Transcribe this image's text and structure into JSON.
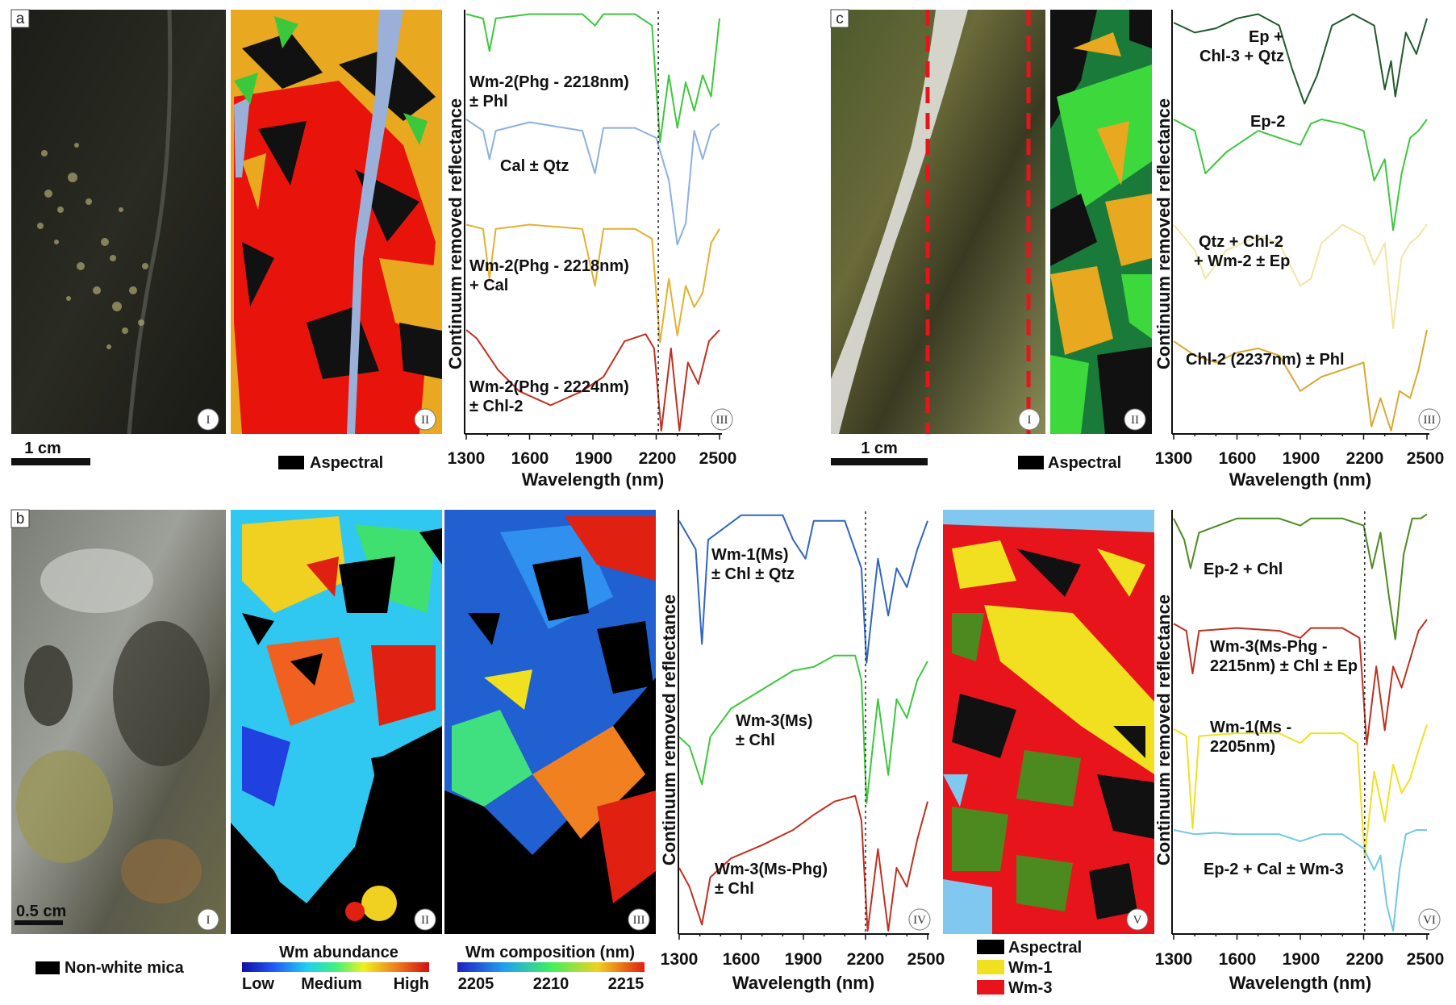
{
  "panels": {
    "a": {
      "letter": "a",
      "scale_label": "1 cm",
      "legend_aspectral": "Aspectral",
      "roman": [
        "I",
        "II",
        "III"
      ],
      "spectra_labels": [
        [
          "Wm-2(Phg - 2218nm)",
          "± Phl"
        ],
        [
          "Cal ± Qtz"
        ],
        [
          "Wm-2(Phg - 2218nm)",
          "+ Cal"
        ],
        [
          "Wm-2(Phg - 2224nm)",
          "± Chl-2"
        ]
      ]
    },
    "b": {
      "letter": "b",
      "scale_label": "0.5 cm",
      "legend_nonwhite": "Non-white mica",
      "roman": [
        "I",
        "II",
        "III",
        "IV",
        "V",
        "VI"
      ],
      "abundance_title": "Wm abundance",
      "abundance_labels": [
        "Low",
        "Medium",
        "High"
      ],
      "composition_title": "Wm composition (nm)",
      "composition_ticks": [
        "2205",
        "2210",
        "2215"
      ],
      "map_legend": [
        "Aspectral",
        "Wm-1",
        "Wm-3"
      ],
      "spectra_iv_labels": [
        [
          "Wm-1(Ms)",
          "± Chl ± Qtz"
        ],
        [
          "Wm-3(Ms)",
          "± Chl"
        ],
        [
          "Wm-3(Ms-Phg)",
          "± Chl"
        ]
      ],
      "spectra_vi_labels": [
        [
          "Ep-2 + Chl"
        ],
        [
          "Wm-3(Ms-Phg -",
          "2215nm) ± Chl ± Ep"
        ],
        [
          "Wm-1(Ms -",
          "2205nm)"
        ],
        [
          "Ep-2 + Cal ± Wm-3"
        ]
      ]
    },
    "c": {
      "letter": "c",
      "scale_label": "1 cm",
      "legend_aspectral": "Aspectral",
      "roman": [
        "I",
        "II",
        "III"
      ],
      "spectra_labels": [
        [
          "Ep +",
          "Chl-3 + Qtz"
        ],
        [
          "Ep-2"
        ],
        [
          "Qtz + Chl-2",
          "+ Wm-2 ± Ep"
        ],
        [
          "Chl-2 (2237nm) ± Phl"
        ]
      ]
    }
  },
  "axis": {
    "xlabel": "Wavelength (nm)",
    "ylabel": "Continuum removed reflectance",
    "ticks": [
      "1300",
      "1600",
      "1900",
      "2200",
      "2500"
    ]
  },
  "colors": {
    "green": "#3cc83c",
    "blue": "#8cb0e0",
    "orange": "#e4b030",
    "red": "#c03020",
    "darkgreen": "#1e5a2a",
    "lightyellow": "#efe6a4",
    "gold": "#d8a830",
    "royalblue": "#3066c0",
    "cyan": "#70c8e0",
    "yellow": "#f0e020",
    "olive": "#4c8a20"
  },
  "chart_data": [
    {
      "type": "line",
      "panel": "a-III",
      "xlabel": "Wavelength (nm)",
      "ylabel": "Continuum removed reflectance",
      "xlim": [
        1300,
        2500
      ],
      "x_ticks": [
        1300,
        1600,
        1900,
        2200,
        2500
      ],
      "reference_line_nm": 2210,
      "series": [
        {
          "name": "Wm-2(Phg - 2218nm) ± Phl",
          "color": "#3cc83c",
          "x": [
            1300,
            1380,
            1410,
            1440,
            1600,
            1850,
            1910,
            1950,
            2100,
            2180,
            2218,
            2260,
            2300,
            2340,
            2380,
            2420,
            2460,
            2500
          ],
          "y": [
            0.98,
            0.95,
            0.72,
            0.95,
            0.98,
            0.98,
            0.9,
            0.98,
            0.98,
            0.9,
            0.08,
            0.55,
            0.18,
            0.5,
            0.3,
            0.55,
            0.4,
            0.95
          ]
        },
        {
          "name": "Cal ± Qtz",
          "color": "#8cb0e0",
          "x": [
            1300,
            1380,
            1410,
            1440,
            1600,
            1850,
            1910,
            1950,
            2100,
            2200,
            2260,
            2300,
            2340,
            2380,
            2420,
            2460,
            2500
          ],
          "y": [
            0.98,
            0.9,
            0.7,
            0.9,
            0.96,
            0.9,
            0.6,
            0.92,
            0.92,
            0.85,
            0.55,
            0.1,
            0.25,
            0.9,
            0.7,
            0.9,
            0.95
          ]
        },
        {
          "name": "Wm-2(Phg - 2218nm) + Cal",
          "color": "#e4b030",
          "x": [
            1300,
            1380,
            1410,
            1440,
            1600,
            1850,
            1910,
            1950,
            2100,
            2180,
            2218,
            2260,
            2300,
            2340,
            2380,
            2420,
            2460,
            2500
          ],
          "y": [
            0.98,
            0.95,
            0.6,
            0.95,
            0.98,
            0.95,
            0.55,
            0.95,
            0.95,
            0.88,
            0.15,
            0.6,
            0.2,
            0.55,
            0.4,
            0.5,
            0.85,
            0.95
          ]
        },
        {
          "name": "Wm-2(Phg - 2224nm) ± Chl-2",
          "color": "#c03020",
          "x": [
            1300,
            1350,
            1450,
            1550,
            1700,
            1850,
            1900,
            1950,
            2050,
            2150,
            2190,
            2224,
            2270,
            2310,
            2350,
            2400,
            2450,
            2500
          ],
          "y": [
            0.98,
            0.92,
            0.7,
            0.55,
            0.45,
            0.55,
            0.6,
            0.65,
            0.9,
            0.95,
            0.85,
            0.05,
            0.85,
            0.25,
            0.75,
            0.6,
            0.9,
            0.98
          ]
        }
      ]
    },
    {
      "type": "line",
      "panel": "c-III",
      "xlabel": "Wavelength (nm)",
      "ylabel": "Continuum removed reflectance",
      "xlim": [
        1300,
        2500
      ],
      "x_ticks": [
        1300,
        1600,
        1900,
        2200,
        2500
      ],
      "series": [
        {
          "name": "Ep + Chl-3 + Qtz",
          "color": "#1e5a2a",
          "x": [
            1300,
            1400,
            1500,
            1600,
            1700,
            1800,
            1860,
            1920,
            1980,
            2050,
            2150,
            2250,
            2300,
            2330,
            2350,
            2400,
            2450,
            2500
          ],
          "y": [
            0.92,
            0.85,
            0.88,
            0.95,
            0.98,
            0.9,
            0.6,
            0.35,
            0.55,
            0.9,
            0.98,
            0.9,
            0.45,
            0.65,
            0.4,
            0.85,
            0.7,
            0.95
          ]
        },
        {
          "name": "Ep-2",
          "color": "#3cc83c",
          "x": [
            1300,
            1400,
            1450,
            1550,
            1700,
            1800,
            1900,
            1950,
            2000,
            2100,
            2200,
            2250,
            2300,
            2340,
            2380,
            2420,
            2460,
            2500
          ],
          "y": [
            0.98,
            0.9,
            0.6,
            0.75,
            0.9,
            0.85,
            0.8,
            0.95,
            0.98,
            0.95,
            0.9,
            0.55,
            0.7,
            0.2,
            0.6,
            0.85,
            0.9,
            0.98
          ]
        },
        {
          "name": "Qtz + Chl-2 + Wm-2 ± Ep",
          "color": "#efe6a4",
          "x": [
            1300,
            1400,
            1450,
            1550,
            1700,
            1800,
            1900,
            1950,
            2000,
            2100,
            2200,
            2250,
            2300,
            2340,
            2380,
            2420,
            2460,
            2500
          ],
          "y": [
            0.98,
            0.8,
            0.6,
            0.8,
            0.9,
            0.85,
            0.55,
            0.6,
            0.85,
            0.98,
            0.9,
            0.7,
            0.85,
            0.25,
            0.75,
            0.85,
            0.9,
            0.98
          ]
        },
        {
          "name": "Chl-2 (2237nm) ± Phl",
          "color": "#d8a830",
          "x": [
            1300,
            1400,
            1500,
            1600,
            1700,
            1800,
            1900,
            1950,
            2000,
            2100,
            2200,
            2237,
            2280,
            2330,
            2370,
            2420,
            2460,
            2500
          ],
          "y": [
            0.9,
            0.8,
            0.75,
            0.82,
            0.85,
            0.8,
            0.55,
            0.6,
            0.65,
            0.7,
            0.75,
            0.3,
            0.5,
            0.15,
            0.55,
            0.5,
            0.7,
            0.98
          ]
        }
      ]
    },
    {
      "type": "line",
      "panel": "b-IV",
      "xlabel": "Wavelength (nm)",
      "ylabel": "Continuum removed reflectance",
      "xlim": [
        1300,
        2500
      ],
      "x_ticks": [
        1300,
        1600,
        1900,
        2200,
        2500
      ],
      "reference_line_nm": 2200,
      "series": [
        {
          "name": "Wm-1(Ms) ± Chl ± Qtz",
          "color": "#3066c0",
          "x": [
            1300,
            1380,
            1410,
            1440,
            1600,
            1800,
            1850,
            1910,
            1950,
            2100,
            2180,
            2205,
            2260,
            2310,
            2350,
            2400,
            2450,
            2500
          ],
          "y": [
            0.95,
            0.8,
            0.3,
            0.85,
            0.98,
            0.98,
            0.85,
            0.75,
            0.95,
            0.95,
            0.7,
            0.2,
            0.75,
            0.45,
            0.7,
            0.6,
            0.8,
            0.95
          ]
        },
        {
          "name": "Wm-3(Ms) ± Chl",
          "color": "#3cc83c",
          "x": [
            1300,
            1350,
            1410,
            1450,
            1550,
            1700,
            1850,
            1950,
            2050,
            2150,
            2180,
            2205,
            2260,
            2310,
            2350,
            2400,
            2450,
            2500
          ],
          "y": [
            0.55,
            0.5,
            0.3,
            0.55,
            0.7,
            0.8,
            0.9,
            0.92,
            0.98,
            0.98,
            0.85,
            0.2,
            0.75,
            0.35,
            0.75,
            0.65,
            0.85,
            0.95
          ]
        },
        {
          "name": "Wm-3(Ms-Phg) ± Chl",
          "color": "#c03020",
          "x": [
            1300,
            1350,
            1410,
            1450,
            1550,
            1700,
            1850,
            1950,
            2050,
            2150,
            2180,
            2210,
            2260,
            2310,
            2350,
            2400,
            2450,
            2500
          ],
          "y": [
            0.6,
            0.5,
            0.3,
            0.55,
            0.65,
            0.72,
            0.8,
            0.88,
            0.95,
            0.98,
            0.85,
            0.05,
            0.7,
            0.2,
            0.6,
            0.5,
            0.75,
            0.95
          ]
        }
      ]
    },
    {
      "type": "line",
      "panel": "b-VI",
      "xlabel": "Wavelength (nm)",
      "ylabel": "Continuum removed reflectance",
      "xlim": [
        1300,
        2500
      ],
      "x_ticks": [
        1300,
        1600,
        1900,
        2200,
        2500
      ],
      "reference_line_nm": 2205,
      "series": [
        {
          "name": "Ep-2 + Chl",
          "color": "#4c8a20",
          "x": [
            1300,
            1350,
            1380,
            1420,
            1600,
            1800,
            1900,
            1950,
            2100,
            2200,
            2240,
            2280,
            2320,
            2350,
            2390,
            2430,
            2470,
            2500
          ],
          "y": [
            0.95,
            0.8,
            0.6,
            0.85,
            0.95,
            0.95,
            0.9,
            0.95,
            0.95,
            0.9,
            0.6,
            0.85,
            0.4,
            0.1,
            0.7,
            0.95,
            0.95,
            0.98
          ]
        },
        {
          "name": "Wm-3(Ms-Phg - 2215nm) ± Chl ± Ep",
          "color": "#c03020",
          "x": [
            1300,
            1360,
            1390,
            1420,
            1600,
            1800,
            1900,
            1950,
            2100,
            2180,
            2215,
            2260,
            2300,
            2340,
            2380,
            2420,
            2460,
            2500
          ],
          "y": [
            0.95,
            0.9,
            0.6,
            0.9,
            0.92,
            0.9,
            0.85,
            0.92,
            0.92,
            0.85,
            0.1,
            0.65,
            0.2,
            0.65,
            0.5,
            0.7,
            0.9,
            0.98
          ]
        },
        {
          "name": "Wm-1(Ms - 2205nm)",
          "color": "#f0e020",
          "x": [
            1300,
            1360,
            1390,
            1420,
            1600,
            1800,
            1900,
            1950,
            2100,
            2170,
            2205,
            2250,
            2300,
            2340,
            2380,
            2420,
            2460,
            2500
          ],
          "y": [
            0.95,
            0.9,
            0.25,
            0.9,
            0.92,
            0.92,
            0.85,
            0.92,
            0.92,
            0.85,
            0.05,
            0.65,
            0.3,
            0.7,
            0.5,
            0.6,
            0.8,
            0.98
          ]
        },
        {
          "name": "Ep-2 + Cal ± Wm-3",
          "color": "#70c8e0",
          "x": [
            1300,
            1400,
            1500,
            1600,
            1800,
            1900,
            2000,
            2100,
            2200,
            2250,
            2280,
            2310,
            2340,
            2370,
            2400,
            2450,
            2500
          ],
          "y": [
            0.98,
            0.95,
            0.96,
            0.95,
            0.95,
            0.9,
            0.95,
            0.95,
            0.85,
            0.7,
            0.8,
            0.45,
            0.05,
            0.7,
            0.95,
            0.98,
            0.98
          ]
        }
      ]
    }
  ]
}
